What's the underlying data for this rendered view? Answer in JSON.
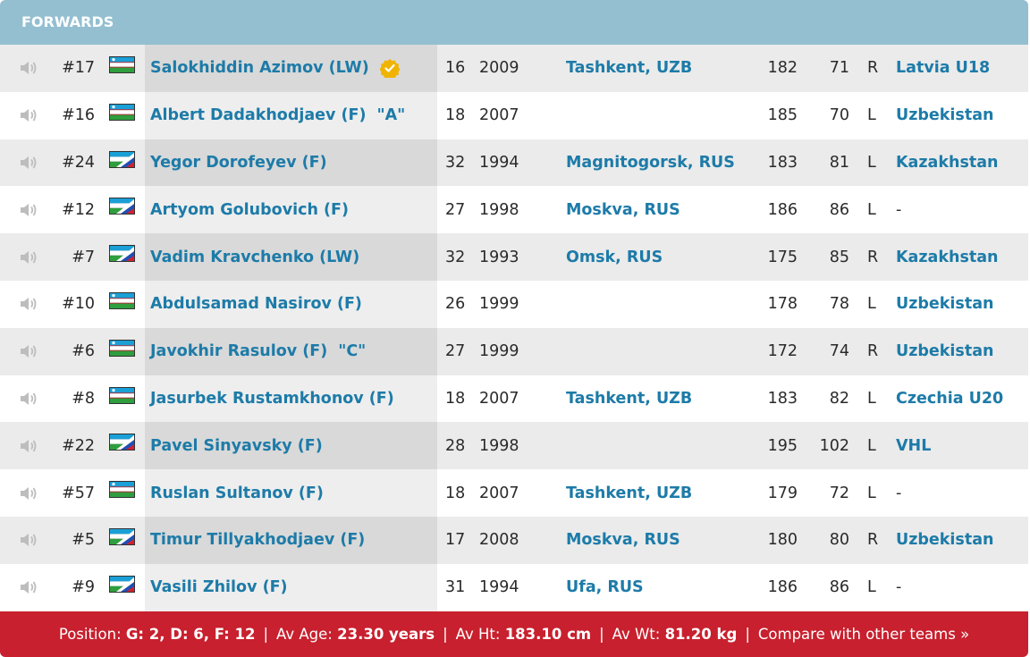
{
  "section": {
    "title": "FORWARDS"
  },
  "colors": {
    "header_bg": "#93bfd1",
    "link": "#1d7ba8",
    "footer_bg": "#c8202e",
    "verified_badge": "#f0b400"
  },
  "players": [
    {
      "number": "#17",
      "flag": "uzb",
      "name": "Salokhiddin Azimov (LW)",
      "captain": "",
      "verified": true,
      "age": "16",
      "born": "2009",
      "birthplace": "Tashkent, UZB",
      "height": "182",
      "weight": "71",
      "shoots": "R",
      "team": "Latvia U18"
    },
    {
      "number": "#16",
      "flag": "uzb",
      "name": "Albert Dadakhodjaev (F)",
      "captain": "\"A\"",
      "verified": false,
      "age": "18",
      "born": "2007",
      "birthplace": "",
      "height": "185",
      "weight": "70",
      "shoots": "L",
      "team": "Uzbekistan"
    },
    {
      "number": "#24",
      "flag": "uzb-rus",
      "name": "Yegor Dorofeyev (F)",
      "captain": "",
      "verified": false,
      "age": "32",
      "born": "1994",
      "birthplace": "Magnitogorsk, RUS",
      "height": "183",
      "weight": "81",
      "shoots": "L",
      "team": "Kazakhstan"
    },
    {
      "number": "#12",
      "flag": "uzb-rus",
      "name": "Artyom Golubovich (F)",
      "captain": "",
      "verified": false,
      "age": "27",
      "born": "1998",
      "birthplace": "Moskva, RUS",
      "height": "186",
      "weight": "86",
      "shoots": "L",
      "team": "-"
    },
    {
      "number": "#7",
      "flag": "uzb-rus",
      "name": "Vadim Kravchenko (LW)",
      "captain": "",
      "verified": false,
      "age": "32",
      "born": "1993",
      "birthplace": "Omsk, RUS",
      "height": "175",
      "weight": "85",
      "shoots": "R",
      "team": "Kazakhstan"
    },
    {
      "number": "#10",
      "flag": "uzb",
      "name": "Abdulsamad Nasirov (F)",
      "captain": "",
      "verified": false,
      "age": "26",
      "born": "1999",
      "birthplace": "",
      "height": "178",
      "weight": "78",
      "shoots": "L",
      "team": "Uzbekistan"
    },
    {
      "number": "#6",
      "flag": "uzb",
      "name": "Javokhir Rasulov (F)",
      "captain": "\"C\"",
      "verified": false,
      "age": "27",
      "born": "1999",
      "birthplace": "",
      "height": "172",
      "weight": "74",
      "shoots": "R",
      "team": "Uzbekistan"
    },
    {
      "number": "#8",
      "flag": "uzb",
      "name": "Jasurbek Rustamkhonov (F)",
      "captain": "",
      "verified": false,
      "age": "18",
      "born": "2007",
      "birthplace": "Tashkent, UZB",
      "height": "183",
      "weight": "82",
      "shoots": "L",
      "team": "Czechia U20"
    },
    {
      "number": "#22",
      "flag": "uzb-rus",
      "name": "Pavel Sinyavsky (F)",
      "captain": "",
      "verified": false,
      "age": "28",
      "born": "1998",
      "birthplace": "",
      "height": "195",
      "weight": "102",
      "shoots": "L",
      "team": "VHL"
    },
    {
      "number": "#57",
      "flag": "uzb",
      "name": "Ruslan Sultanov (F)",
      "captain": "",
      "verified": false,
      "age": "18",
      "born": "2007",
      "birthplace": "Tashkent, UZB",
      "height": "179",
      "weight": "72",
      "shoots": "L",
      "team": "-"
    },
    {
      "number": "#5",
      "flag": "uzb-rus",
      "name": "Timur Tillyakhodjaev (F)",
      "captain": "",
      "verified": false,
      "age": "17",
      "born": "2008",
      "birthplace": "Moskva, RUS",
      "height": "180",
      "weight": "80",
      "shoots": "R",
      "team": "Uzbekistan"
    },
    {
      "number": "#9",
      "flag": "uzb-rus",
      "name": "Vasili Zhilov (F)",
      "captain": "",
      "verified": false,
      "age": "31",
      "born": "1994",
      "birthplace": "Ufa, RUS",
      "height": "186",
      "weight": "86",
      "shoots": "L",
      "team": "-"
    }
  ],
  "footer": {
    "position_label": "Position:",
    "position_value": "G: 2, D: 6, F: 12",
    "age_label": "Av Age:",
    "age_value": "23.30 years",
    "height_label": "Av Ht:",
    "height_value": "183.10 cm",
    "weight_label": "Av Wt:",
    "weight_value": "81.20 kg",
    "separator": "|",
    "compare_link": "Compare with other teams »"
  }
}
